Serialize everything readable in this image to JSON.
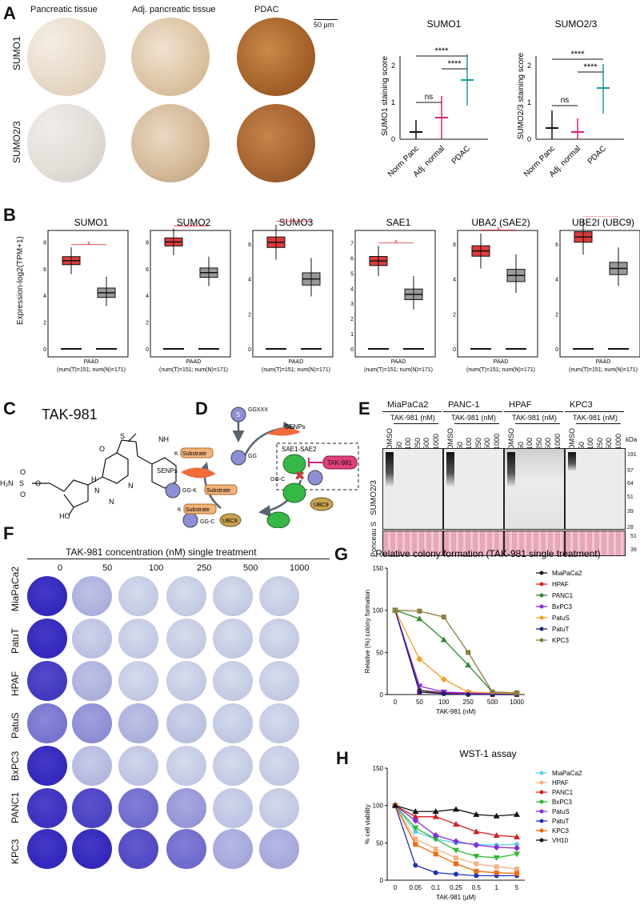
{
  "panels": {
    "A": "A",
    "B": "B",
    "C": "C",
    "D": "D",
    "E": "E",
    "F": "F",
    "G": "G",
    "H": "H"
  },
  "panelA": {
    "columns": [
      "Pancreatic tissue",
      "Adj. pancreatic tissue",
      "PDAC"
    ],
    "rows": [
      "SUMO1",
      "SUMO2/3"
    ],
    "scale_bar": "50 µm",
    "charts": [
      {
        "title": "SUMO1",
        "ylabel": "SUMO1 staining score",
        "categories": [
          "Norm Panc",
          "Adj. normal",
          "PDAC"
        ],
        "means": [
          0.2,
          0.6,
          1.6
        ],
        "yticks": [
          "0",
          "1",
          "2"
        ],
        "sig": [
          "****",
          "****",
          "ns"
        ]
      },
      {
        "title": "SUMO2/3",
        "ylabel": "SUMO2/3 staining score",
        "categories": [
          "Norm Panc",
          "Adj. normal",
          "PDAC"
        ],
        "means": [
          0.3,
          0.2,
          1.4
        ],
        "yticks": [
          "0",
          "1",
          "2"
        ],
        "sig": [
          "****",
          "****",
          "ns"
        ]
      }
    ]
  },
  "panelB": {
    "ylabel": "Expression-log2(TPM+1)",
    "group": "PAAD",
    "n_label": "(num(T)=151; num(N)=171)",
    "star": "*",
    "genes": [
      {
        "title": "SUMO1",
        "yticks": [
          "0",
          "2",
          "4",
          "6",
          "8"
        ],
        "tumor_median": 6.6,
        "normal_median": 4.2
      },
      {
        "title": "SUMO2",
        "yticks": [
          "0",
          "2",
          "4",
          "6",
          "8"
        ],
        "tumor_median": 8.0,
        "normal_median": 5.7
      },
      {
        "title": "SUMO3",
        "yticks": [
          "0",
          "2",
          "4",
          "6"
        ],
        "tumor_median": 6.1,
        "normal_median": 4.0
      },
      {
        "title": "SAE1",
        "yticks": [
          "0",
          "1",
          "2",
          "3",
          "4",
          "5",
          "6",
          "7"
        ],
        "tumor_median": 5.8,
        "normal_median": 3.6
      },
      {
        "title": "UBA2 (SAE2)",
        "yticks": [
          "0",
          "2",
          "4",
          "6"
        ],
        "tumor_median": 5.6,
        "normal_median": 4.2
      },
      {
        "title": "UBE2I (UBC9)",
        "yticks": [
          "0",
          "2",
          "4",
          "6"
        ],
        "tumor_median": 6.4,
        "normal_median": 4.6
      }
    ]
  },
  "panelC": {
    "title": "TAK-981",
    "atoms": {
      "h2n": "H₂N",
      "s": "S",
      "o": "O",
      "o2": "O",
      "ho": "HO",
      "n": "N",
      "nh": "NH",
      "n2": "N",
      "n3": "N",
      "h": "H",
      "cl": "Cl",
      "o3": "O",
      "o4": "O",
      "s2": "S"
    }
  },
  "panelD": {
    "labels": {
      "ggxxx": "GGXXX",
      "senps_top": "SENPs",
      "senps_left": "SENPs",
      "substrate1": "Substrate",
      "k1": "K",
      "gg": "GG",
      "complex": "SAE1-SAE2",
      "tak": "TAK-981",
      "substrate2": "Substrate",
      "ggk": "GG-K",
      "ubc9_small": "UBC9",
      "substrate3": "Substrate",
      "k3": "K",
      "ubc9": "UBC9",
      "ggc1": "GG-C",
      "ggc2": "GG-C",
      "s": "S"
    }
  },
  "panelE": {
    "cell_lines": [
      "MiaPaCa2",
      "PANC-1",
      "HPAF",
      "KPC3"
    ],
    "treatment": "TAK-981 (nM)",
    "lanes": [
      "DMSO",
      "50",
      "100",
      "250",
      "500",
      "1000"
    ],
    "kda_label": "kDa",
    "markers": [
      "191",
      "97",
      "64",
      "51",
      "39",
      "28"
    ],
    "ponceau_markers": [
      "51",
      "39"
    ],
    "blot_label": "SUMO2/3",
    "ponceau_label": "Ponceau S"
  },
  "panelF": {
    "title": "TAK-981 concentration (nM) single treatment",
    "concentrations": [
      "0",
      "50",
      "100",
      "250",
      "500",
      "1000"
    ],
    "cell_lines": [
      "MiaPaCa2",
      "PatuT",
      "HPAF",
      "PatuS",
      "BxPC3",
      "PANC1",
      "KPC3"
    ]
  },
  "chart_data": [
    {
      "type": "line",
      "title": "Relative colony formation (TAK-981 single treatment)",
      "xlabel": "TAK-981 (nM)",
      "ylabel": "Relative (%) colony formation",
      "x": [
        "0",
        "50",
        "100",
        "250",
        "500",
        "1000"
      ],
      "ylim": [
        0,
        150
      ],
      "yticks": [
        "0",
        "50",
        "100",
        "150"
      ],
      "series": [
        {
          "name": "MiaPaCa2",
          "color": "#1a1a1a",
          "marker": "circle",
          "values": [
            100,
            5,
            2,
            1,
            0,
            0
          ]
        },
        {
          "name": "HPAF",
          "color": "#d42020",
          "marker": "square",
          "values": [
            100,
            3,
            2,
            1,
            0,
            0
          ]
        },
        {
          "name": "PANC1",
          "color": "#2e8b2e",
          "marker": "triangle",
          "values": [
            100,
            90,
            65,
            35,
            3,
            2
          ]
        },
        {
          "name": "BxPC3",
          "color": "#8a2be2",
          "marker": "tri-down",
          "values": [
            100,
            10,
            3,
            2,
            1,
            1
          ]
        },
        {
          "name": "PatuS",
          "color": "#f0a020",
          "marker": "diamond",
          "values": [
            100,
            42,
            18,
            3,
            2,
            1
          ]
        },
        {
          "name": "PatuT",
          "color": "#1a237e",
          "marker": "circle",
          "values": [
            100,
            3,
            1,
            0,
            0,
            0
          ]
        },
        {
          "name": "KPC3",
          "color": "#8b7d3a",
          "marker": "square",
          "values": [
            100,
            99,
            92,
            50,
            3,
            2
          ]
        }
      ]
    },
    {
      "type": "line",
      "title": "WST-1 assay",
      "xlabel": "TAK-981 (µM)",
      "ylabel": "% cell viability",
      "x": [
        "0",
        "0.05",
        "0.1",
        "0.25",
        "0.5",
        "1",
        "5"
      ],
      "ylim": [
        0,
        150
      ],
      "yticks": [
        "0",
        "50",
        "100",
        "150"
      ],
      "series": [
        {
          "name": "MiaPaCa2",
          "color": "#5ad0e6",
          "marker": "circle",
          "values": [
            100,
            65,
            55,
            50,
            48,
            47,
            48
          ]
        },
        {
          "name": "HPAF",
          "color": "#f4b183",
          "marker": "square",
          "values": [
            100,
            55,
            42,
            30,
            22,
            18,
            15
          ]
        },
        {
          "name": "PANC1",
          "color": "#d42020",
          "marker": "triangle",
          "values": [
            100,
            85,
            85,
            75,
            65,
            60,
            58
          ]
        },
        {
          "name": "BxPC3",
          "color": "#2eb82e",
          "marker": "tri-down",
          "values": [
            100,
            70,
            55,
            40,
            32,
            30,
            35
          ]
        },
        {
          "name": "PatuS",
          "color": "#8a2be2",
          "marker": "diamond",
          "values": [
            100,
            80,
            60,
            52,
            47,
            44,
            43
          ]
        },
        {
          "name": "PatuT",
          "color": "#1f2fbf",
          "marker": "circle",
          "values": [
            100,
            20,
            10,
            8,
            6,
            6,
            6
          ]
        },
        {
          "name": "KPC3",
          "color": "#f06a10",
          "marker": "square",
          "values": [
            100,
            48,
            35,
            22,
            12,
            10,
            9
          ]
        },
        {
          "name": "VH10",
          "color": "#111111",
          "marker": "triangle",
          "values": [
            100,
            92,
            92,
            95,
            88,
            86,
            88
          ]
        }
      ]
    }
  ]
}
